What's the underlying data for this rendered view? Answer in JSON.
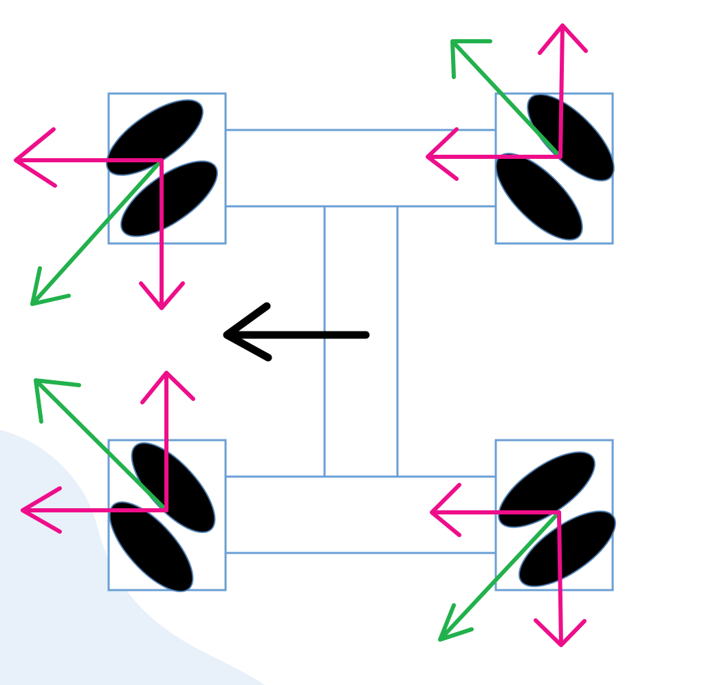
{
  "diagram": {
    "type": "mecanum-wheel-force-vectors",
    "motion_direction": "left",
    "colors": {
      "background": "#ffffff",
      "blob": "#e8f0fa",
      "frame": "#6a9fd4",
      "roller_fill": "#000000",
      "roller_edge": "#4f7fb3",
      "axis_force": "#ee0e8a",
      "resultant_force": "#22b14c",
      "motion_arrow": "#000000"
    },
    "wheels": [
      {
        "id": "front-left",
        "roller_slant": "up-right",
        "horizontal_component": "left",
        "vertical_component": "down",
        "resultant": "down-left"
      },
      {
        "id": "front-right",
        "roller_slant": "down-right",
        "horizontal_component": "left",
        "vertical_component": "up",
        "resultant": "up-left"
      },
      {
        "id": "rear-left",
        "roller_slant": "down-right",
        "horizontal_component": "left",
        "vertical_component": "up",
        "resultant": "up-left"
      },
      {
        "id": "rear-right",
        "roller_slant": "up-right",
        "horizontal_component": "left",
        "vertical_component": "down",
        "resultant": "down-left"
      }
    ]
  }
}
